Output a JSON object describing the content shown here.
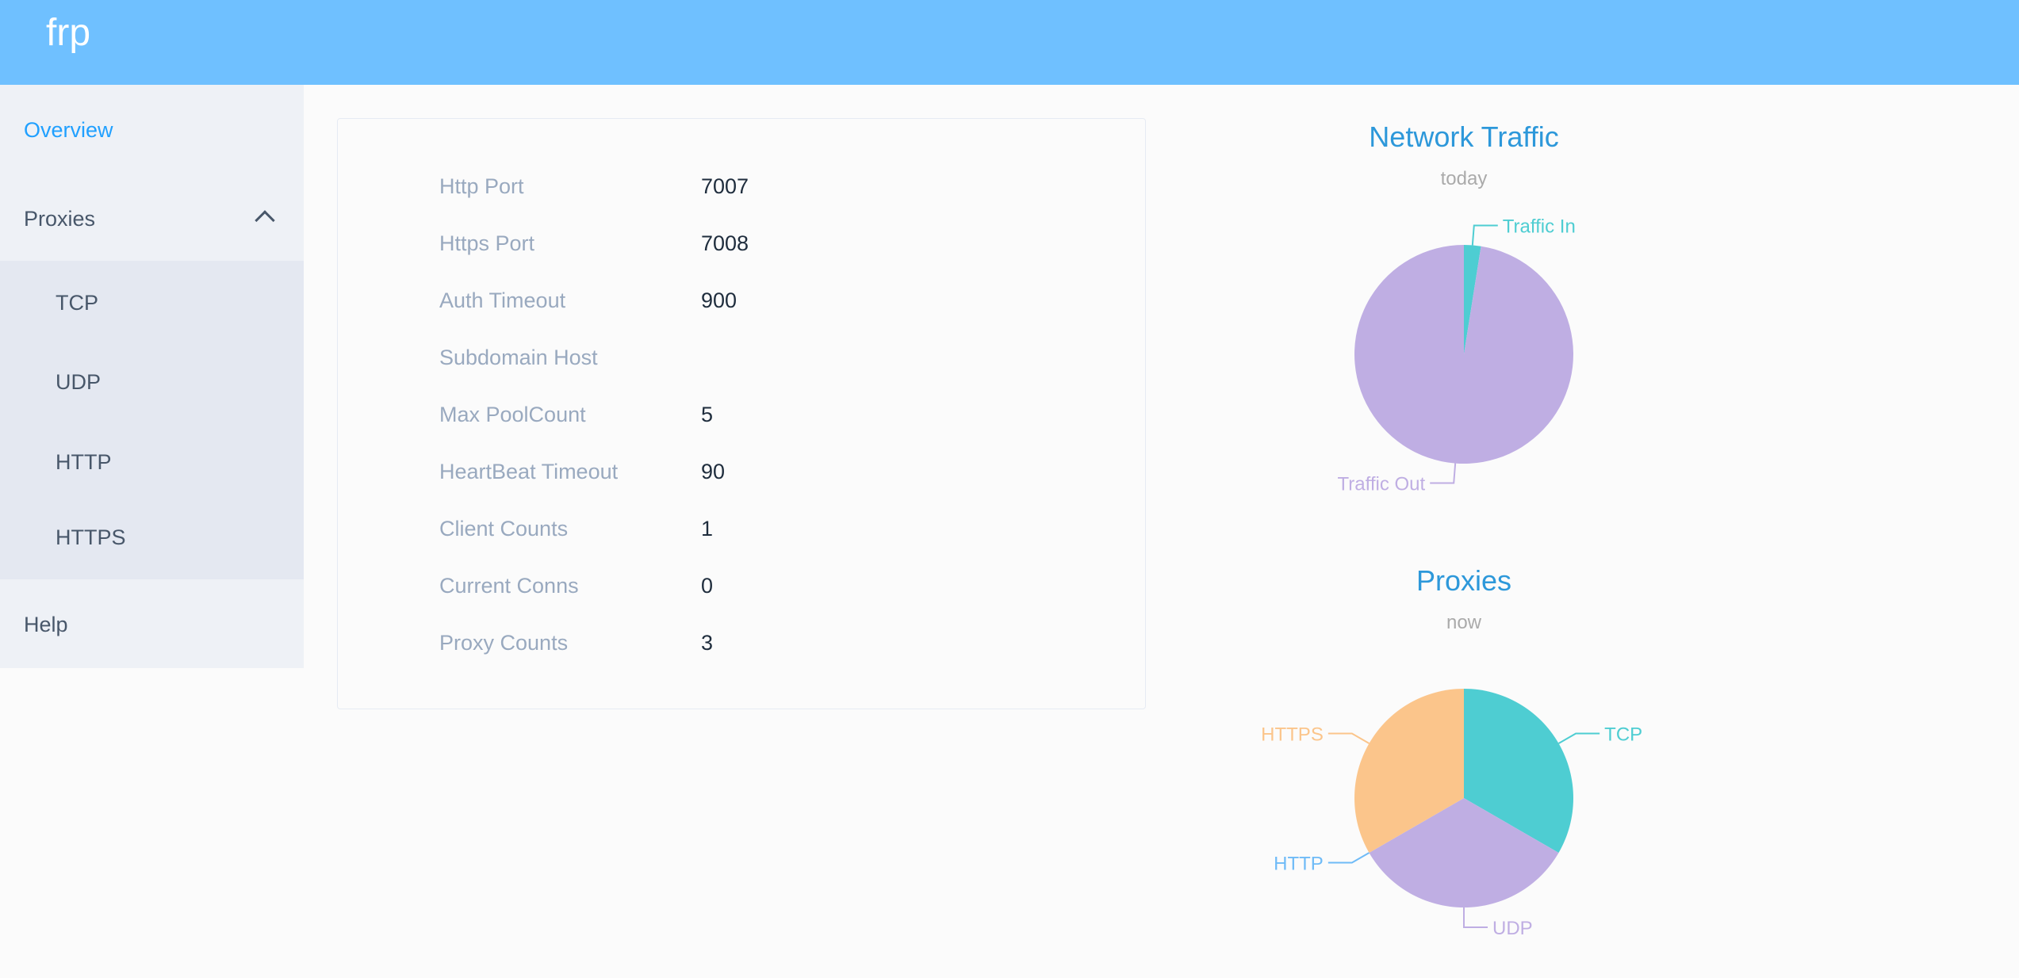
{
  "header": {
    "logo": "frp"
  },
  "sidebar": {
    "items": [
      {
        "label": "Overview",
        "active": true
      },
      {
        "label": "Proxies",
        "expanded": true
      },
      {
        "label": "TCP"
      },
      {
        "label": "UDP"
      },
      {
        "label": "HTTP"
      },
      {
        "label": "HTTPS"
      },
      {
        "label": "Help"
      }
    ]
  },
  "overview": {
    "rows": [
      {
        "label": "Http Port",
        "value": "7007"
      },
      {
        "label": "Https Port",
        "value": "7008"
      },
      {
        "label": "Auth Timeout",
        "value": "900"
      },
      {
        "label": "Subdomain Host",
        "value": ""
      },
      {
        "label": "Max PoolCount",
        "value": "5"
      },
      {
        "label": "HeartBeat Timeout",
        "value": "90"
      },
      {
        "label": "Client Counts",
        "value": "1"
      },
      {
        "label": "Current Conns",
        "value": "0"
      },
      {
        "label": "Proxy Counts",
        "value": "3"
      }
    ]
  },
  "colors": {
    "accent": "#20a0ff",
    "header": "#6fc0ff",
    "title": "#2d98da"
  },
  "chart_data": [
    {
      "type": "pie",
      "title": "Network Traffic",
      "subtitle": "today",
      "categories": [
        "Traffic In",
        "Traffic Out"
      ],
      "values": [
        2.5,
        97.5
      ],
      "colors": [
        "#4ecdd2",
        "#bfaee3"
      ]
    },
    {
      "type": "pie",
      "title": "Proxies",
      "subtitle": "now",
      "categories": [
        "TCP",
        "UDP",
        "HTTP",
        "HTTPS"
      ],
      "values": [
        1,
        1,
        0,
        1
      ],
      "colors": [
        "#4ecdd2",
        "#bfaee3",
        "#6fbbf7",
        "#fbc58b"
      ]
    }
  ]
}
